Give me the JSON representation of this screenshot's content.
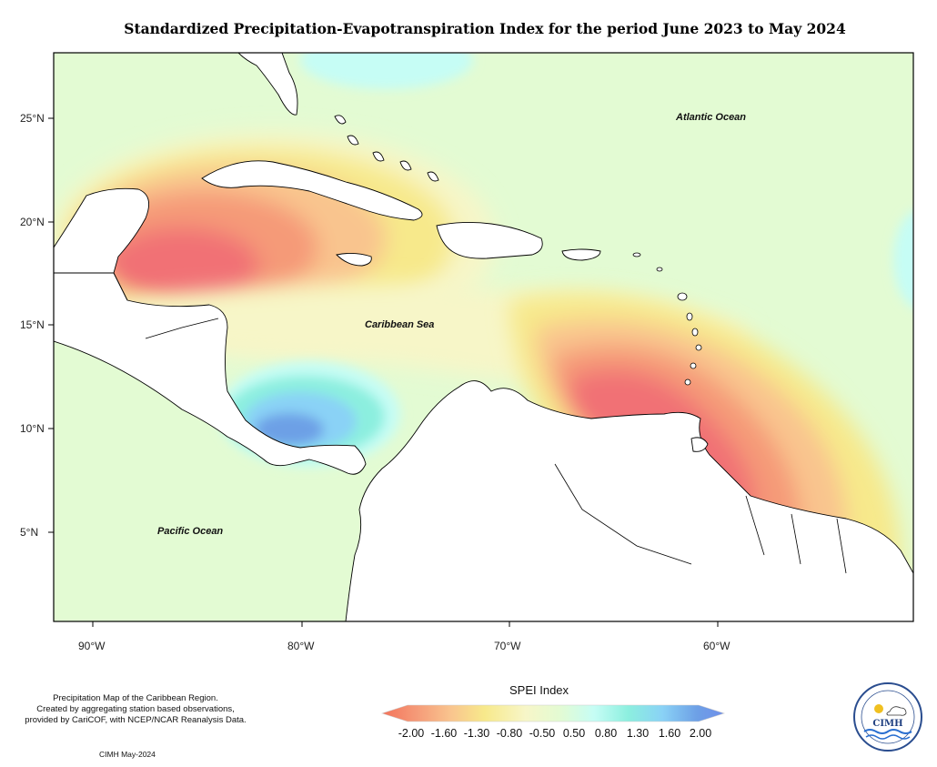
{
  "title": "Standardized Precipitation-Evapotranspiration Index for the period June 2023 to May 2024",
  "lat_labels": [
    "25°N",
    "20°N",
    "15°N",
    "10°N",
    "5°N"
  ],
  "lon_labels": [
    "90°W",
    "80°W",
    "70°W",
    "60°W"
  ],
  "ocean_labels": {
    "atlantic": "Atlantic Ocean",
    "caribbean": "Caribbean Sea",
    "pacific": "Pacific Ocean"
  },
  "legend": {
    "title": "SPEI Index",
    "ticks": [
      "-2.00",
      "-1.60",
      "-1.30",
      "-0.80",
      "-0.50",
      "0.50",
      "0.80",
      "1.30",
      "1.60",
      "2.00"
    ],
    "colors": [
      "#f4735a",
      "#f59a78",
      "#f9c48e",
      "#f7e98b",
      "#f7f6c8",
      "#e3fbd3",
      "#c6fdf5",
      "#8cefdf",
      "#8ad2f6",
      "#6da0e6",
      "#6f8fea"
    ]
  },
  "credit_lines": [
    "Precipitation Map of the Caribbean Region.",
    "Created by aggregating station based observations,",
    "provided by CariCOF, with NCEP/NCAR Reanalysis Data."
  ],
  "footer": "CIMH May-2024",
  "logo_text": "CIMH",
  "colors": {
    "background_field": "#e3fbd3",
    "land": "#ffffff",
    "dry_core": "#f17174"
  }
}
